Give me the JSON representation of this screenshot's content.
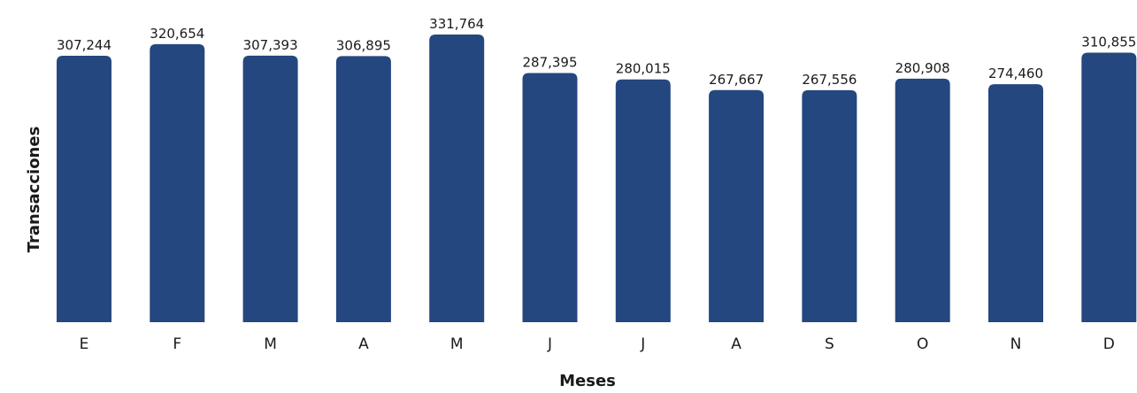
{
  "chart_data": {
    "type": "bar",
    "title": "",
    "xlabel": "Meses",
    "ylabel": "Transacciones",
    "categories": [
      "E",
      "F",
      "M",
      "A",
      "M",
      "J",
      "J",
      "A",
      "S",
      "O",
      "N",
      "D"
    ],
    "values": [
      307244,
      320654,
      307393,
      306895,
      331764,
      287395,
      280015,
      267667,
      267556,
      280908,
      274460,
      310855
    ],
    "value_labels": [
      "307,244",
      "320,654",
      "307,393",
      "306,895",
      "331,764",
      "287,395",
      "280,015",
      "267,667",
      "267,556",
      "280,908",
      "274,460",
      "310,855"
    ],
    "ylim": [
      0,
      331764
    ],
    "grid": false,
    "legend": "none",
    "bar_color": "#24477F"
  }
}
